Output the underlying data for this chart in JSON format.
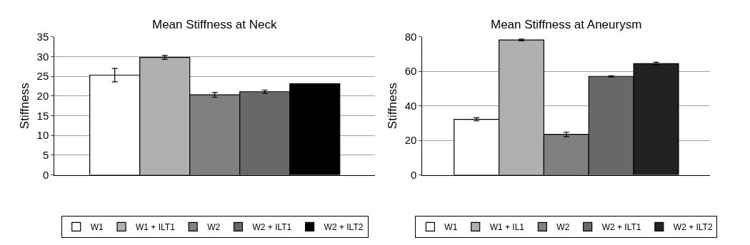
{
  "chart_data": [
    {
      "type": "bar",
      "title": "Mean Stiffness at Neck",
      "ylabel": "Stiffness",
      "categories": [
        null
      ],
      "ylim": [
        0,
        35
      ],
      "yticks": [
        0,
        5,
        10,
        15,
        20,
        25,
        30,
        35
      ],
      "grid": "y",
      "legend": "bottom",
      "series": [
        {
          "name": "W1",
          "color": "#ffffff",
          "values": [
            25.3
          ],
          "errors": [
            1.7
          ]
        },
        {
          "name": "W1 + ILT1",
          "color": "#b0b0b0",
          "values": [
            29.8
          ],
          "errors": [
            0.5
          ]
        },
        {
          "name": "W2",
          "color": "#808080",
          "values": [
            20.3
          ],
          "errors": [
            0.6
          ]
        },
        {
          "name": "W2 + ILT1",
          "color": "#686868",
          "values": [
            21.1
          ],
          "errors": [
            0.4
          ]
        },
        {
          "name": "W2 + ILT2",
          "color": "#000000",
          "values": [
            23.1
          ]
        }
      ]
    },
    {
      "type": "bar",
      "title": "Mean Stiffness at Aneurysm",
      "ylabel": "Stiffness",
      "categories": [
        null
      ],
      "ylim": [
        0,
        80
      ],
      "yticks": [
        0,
        20,
        40,
        60,
        80
      ],
      "grid": "y",
      "legend": "bottom",
      "series": [
        {
          "name": "W1",
          "color": "#ffffff",
          "values": [
            32.2
          ],
          "errors": [
            0.9
          ]
        },
        {
          "name": "W1 + IL1",
          "color": "#b0b0b0",
          "values": [
            78.2
          ],
          "errors": [
            0.5
          ]
        },
        {
          "name": "W2",
          "color": "#808080",
          "values": [
            23.5
          ],
          "errors": [
            1.3
          ]
        },
        {
          "name": "W2 + ILT1",
          "color": "#686868",
          "values": [
            57.1
          ],
          "errors": [
            0.4
          ]
        },
        {
          "name": "W2 + ILT2",
          "color": "#222222",
          "values": [
            64.5
          ],
          "errors": [
            0.8
          ]
        }
      ]
    }
  ]
}
